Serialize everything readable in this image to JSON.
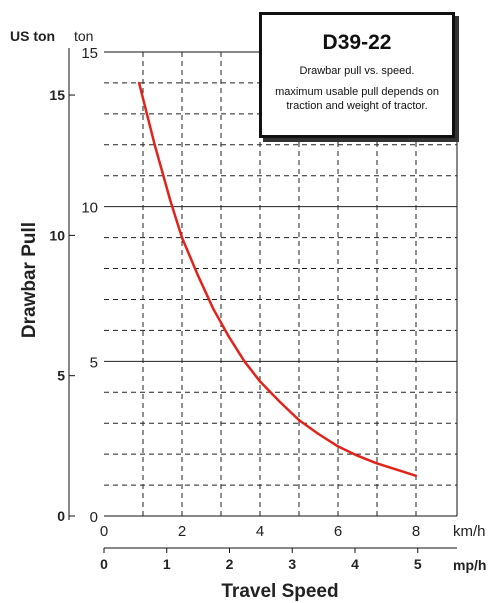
{
  "chart_data": {
    "type": "line",
    "title": "D39-22",
    "subtitle": "Drawbar pull vs. speed.",
    "note": "maximum usable pull depends on traction and weight of tractor.",
    "ylabel": "Drawbar Pull",
    "xlabel": "Travel Speed",
    "y_unit_primary": "ton",
    "y_unit_secondary": "US ton",
    "x_unit_primary": "km/h",
    "x_unit_secondary": "mp/h",
    "xlim": [
      0,
      8.7
    ],
    "ylim": [
      0,
      15
    ],
    "x_ticks_kmh": [
      "0",
      "2",
      "4",
      "6",
      "8"
    ],
    "y_ticks_ton": [
      "0",
      "5",
      "10",
      "15"
    ],
    "x_ticks_mph": [
      "0",
      "1",
      "2",
      "3",
      "4",
      "5"
    ],
    "y_ticks_uston": [
      "0",
      "5",
      "10",
      "15"
    ],
    "series": [
      {
        "color": "#e2231a",
        "x": [
          0.9,
          1.1,
          1.3,
          1.5,
          1.7,
          2.0,
          2.4,
          2.8,
          3.2,
          3.6,
          4.0,
          4.5,
          5.0,
          5.5,
          6.0,
          6.5,
          7.0,
          7.5,
          8.0
        ],
        "y": [
          14.0,
          13.0,
          12.0,
          11.1,
          10.2,
          9.0,
          7.8,
          6.7,
          5.8,
          5.0,
          4.35,
          3.7,
          3.1,
          2.65,
          2.25,
          1.95,
          1.7,
          1.5,
          1.3
        ]
      }
    ],
    "grid": true
  }
}
